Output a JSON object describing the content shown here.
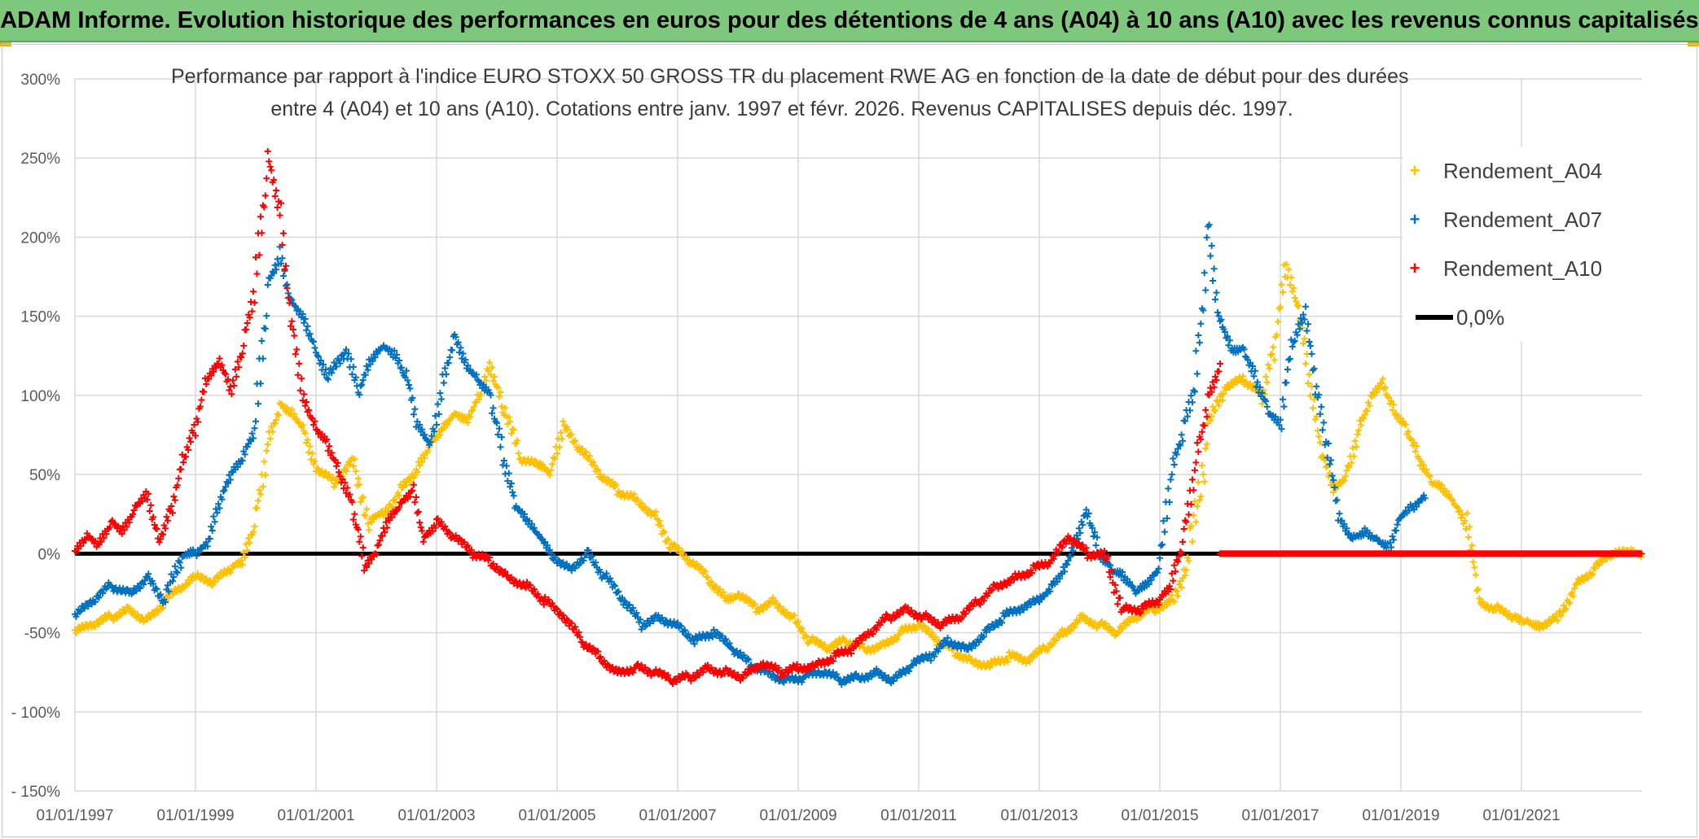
{
  "header": {
    "title": "ADAM Informe. Evolution historique des performances en euros pour des détentions de 4 ans (A04) à 10 ans (A10) avec les revenus connus capitalisés"
  },
  "colors": {
    "banner": "#7dc87d",
    "a04": "#ffc000",
    "a07": "#0070c0",
    "a10": "#ff0000",
    "zero": "#000000",
    "grid": "#d9d9d9"
  },
  "chart_data": {
    "type": "scatter",
    "title_line1": "Performance par rapport à l'indice EURO STOXX 50 GROSS TR  du placement RWE AG en fonction de la date de début pour des durées",
    "title_line2": "entre 4 (A04) et 10 ans (A10). Cotations entre janv. 1997 et févr. 2026. Revenus CAPITALISES depuis déc. 1997.",
    "ylim": [
      -150,
      300
    ],
    "xlim": [
      1997.0,
      2023.0
    ],
    "y_ticks": [
      {
        "value": 300,
        "label": "300%"
      },
      {
        "value": 250,
        "label": "250%"
      },
      {
        "value": 200,
        "label": "200%"
      },
      {
        "value": 150,
        "label": "150%"
      },
      {
        "value": 100,
        "label": "100%"
      },
      {
        "value": 50,
        "label": "50%"
      },
      {
        "value": 0,
        "label": "0%"
      },
      {
        "value": -50,
        "label": "-50%"
      },
      {
        "value": -100,
        "label": "- 100%"
      },
      {
        "value": -150,
        "label": "- 150%"
      }
    ],
    "x_ticks": [
      {
        "value": 1997.0,
        "label": "01/01/1997"
      },
      {
        "value": 1999.0,
        "label": "01/01/1999"
      },
      {
        "value": 2001.0,
        "label": "01/01/2001"
      },
      {
        "value": 2003.0,
        "label": "01/01/2003"
      },
      {
        "value": 2005.0,
        "label": "01/01/2005"
      },
      {
        "value": 2007.0,
        "label": "01/01/2007"
      },
      {
        "value": 2009.0,
        "label": "01/01/2009"
      },
      {
        "value": 2011.0,
        "label": "01/01/2011"
      },
      {
        "value": 2013.0,
        "label": "01/01/2013"
      },
      {
        "value": 2015.0,
        "label": "01/01/2015"
      },
      {
        "value": 2017.0,
        "label": "01/01/2017"
      },
      {
        "value": 2019.0,
        "label": "01/01/2019"
      },
      {
        "value": 2021.0,
        "label": "01/01/2021"
      }
    ],
    "legend": [
      {
        "key": "a04",
        "label": "Rendement_A04",
        "kind": "marker"
      },
      {
        "key": "a07",
        "label": "Rendement_A07",
        "kind": "marker"
      },
      {
        "key": "a10",
        "label": "Rendement_A10",
        "kind": "marker"
      },
      {
        "key": "zero",
        "label": "0,0%",
        "kind": "line"
      }
    ],
    "series": [
      {
        "name": "Rendement_A04",
        "key": "a04",
        "x": [
          1997.0,
          1997.3,
          1997.6,
          1997.9,
          1998.2,
          1998.5,
          1998.8,
          1999.0,
          1999.3,
          1999.6,
          1999.8,
          2000.0,
          2000.2,
          2000.4,
          2000.6,
          2000.8,
          2001.0,
          2001.3,
          2001.6,
          2001.9,
          2002.1,
          2002.4,
          2002.7,
          2002.9,
          2003.1,
          2003.3,
          2003.5,
          2003.7,
          2003.9,
          2004.1,
          2004.4,
          2004.7,
          2004.9,
          2005.1,
          2005.4,
          2005.7,
          2006.0,
          2006.3,
          2006.6,
          2006.9,
          2007.2,
          2007.5,
          2007.8,
          2008.0,
          2008.3,
          2008.6,
          2008.9,
          2009.2,
          2009.5,
          2009.8,
          2010.1,
          2010.4,
          2010.7,
          2011.0,
          2011.3,
          2011.6,
          2011.9,
          2012.2,
          2012.5,
          2012.8,
          2013.1,
          2013.4,
          2013.7,
          2014.0,
          2014.3,
          2014.6,
          2014.9,
          2015.2,
          2015.5,
          2015.8,
          2016.1,
          2016.4,
          2016.7,
          2016.9,
          2017.1,
          2017.3,
          2017.5,
          2017.7,
          2017.9,
          2018.1,
          2018.3,
          2018.5,
          2018.7,
          2018.9,
          2019.1,
          2019.3,
          2019.5,
          2019.7,
          2019.9,
          2020.1,
          2020.3,
          2020.6,
          2020.9,
          2021.1,
          2021.3,
          2021.6,
          2021.9,
          2022.2,
          2022.5,
          2022.8,
          2023.0
        ],
        "values": [
          -50,
          -45,
          -40,
          -35,
          -42,
          -30,
          -20,
          -15,
          -18,
          -10,
          -5,
          20,
          70,
          95,
          90,
          80,
          55,
          45,
          60,
          20,
          25,
          40,
          55,
          70,
          80,
          90,
          85,
          100,
          120,
          90,
          60,
          55,
          50,
          80,
          65,
          50,
          40,
          35,
          25,
          5,
          -5,
          -15,
          -30,
          -25,
          -35,
          -30,
          -40,
          -55,
          -60,
          -55,
          -60,
          -58,
          -50,
          -45,
          -55,
          -62,
          -68,
          -70,
          -65,
          -68,
          -60,
          -50,
          -40,
          -45,
          -50,
          -40,
          -35,
          -30,
          0,
          80,
          105,
          110,
          100,
          130,
          180,
          150,
          100,
          60,
          40,
          50,
          80,
          100,
          110,
          90,
          80,
          60,
          45,
          40,
          30,
          15,
          -30,
          -35,
          -40,
          -42,
          -45,
          -40,
          -20,
          -10,
          0,
          0,
          0
        ]
      },
      {
        "name": "Rendement_A07",
        "key": "a07",
        "x": [
          1997.0,
          1997.3,
          1997.6,
          1997.9,
          1998.2,
          1998.5,
          1998.8,
          1999.0,
          1999.2,
          1999.4,
          1999.6,
          1999.8,
          2000.0,
          2000.2,
          2000.4,
          2000.6,
          2000.8,
          2001.0,
          2001.2,
          2001.5,
          2001.7,
          2001.9,
          2002.1,
          2002.3,
          2002.5,
          2002.7,
          2002.9,
          2003.1,
          2003.3,
          2003.5,
          2003.7,
          2003.9,
          2004.1,
          2004.3,
          2004.5,
          2004.7,
          2004.9,
          2005.2,
          2005.5,
          2005.8,
          2006.1,
          2006.4,
          2006.7,
          2007.0,
          2007.3,
          2007.6,
          2007.9,
          2008.2,
          2008.5,
          2008.8,
          2009.1,
          2009.4,
          2009.7,
          2010.0,
          2010.3,
          2010.6,
          2010.9,
          2011.2,
          2011.5,
          2011.8,
          2012.1,
          2012.4,
          2012.7,
          2013.0,
          2013.2,
          2013.4,
          2013.6,
          2013.8,
          2014.0,
          2014.2,
          2014.4,
          2014.6,
          2014.8,
          2015.0,
          2015.2,
          2015.4,
          2015.6,
          2015.8,
          2016.0,
          2016.2,
          2016.4,
          2016.6,
          2016.8,
          2017.0,
          2017.2,
          2017.4,
          2017.6,
          2017.8,
          2018.0,
          2018.2,
          2018.4,
          2018.6,
          2018.8,
          2019.0,
          2019.2,
          2019.4
        ],
        "values": [
          -40,
          -30,
          -20,
          -25,
          -15,
          -30,
          0,
          0,
          5,
          30,
          50,
          60,
          80,
          170,
          190,
          160,
          150,
          130,
          110,
          130,
          100,
          120,
          130,
          125,
          110,
          80,
          70,
          110,
          140,
          120,
          110,
          100,
          60,
          30,
          20,
          10,
          0,
          -10,
          0,
          -15,
          -30,
          -45,
          -40,
          -45,
          -55,
          -50,
          -60,
          -70,
          -75,
          -80,
          -78,
          -75,
          -80,
          -78,
          -75,
          -80,
          -70,
          -65,
          -55,
          -60,
          -50,
          -40,
          -35,
          -30,
          -20,
          -10,
          10,
          30,
          0,
          -10,
          -15,
          -25,
          -20,
          -10,
          50,
          80,
          110,
          210,
          150,
          130,
          130,
          110,
          90,
          80,
          130,
          150,
          100,
          60,
          20,
          10,
          15,
          10,
          5,
          25,
          30,
          35
        ]
      },
      {
        "name": "Rendement_A10",
        "key": "a10",
        "x": [
          1997.0,
          1997.2,
          1997.4,
          1997.6,
          1997.8,
          1998.0,
          1998.2,
          1998.4,
          1998.6,
          1998.8,
          1999.0,
          1999.2,
          1999.4,
          1999.6,
          1999.8,
          2000.0,
          2000.2,
          2000.4,
          2000.6,
          2000.8,
          2001.0,
          2001.2,
          2001.4,
          2001.6,
          2001.8,
          2002.0,
          2002.2,
          2002.4,
          2002.6,
          2002.8,
          2003.0,
          2003.3,
          2003.6,
          2003.9,
          2004.2,
          2004.5,
          2004.8,
          2005.1,
          2005.4,
          2005.7,
          2006.0,
          2006.3,
          2006.6,
          2006.9,
          2007.2,
          2007.5,
          2007.8,
          2008.1,
          2008.4,
          2008.7,
          2009.0,
          2009.3,
          2009.6,
          2009.9,
          2010.2,
          2010.5,
          2010.8,
          2011.1,
          2011.4,
          2011.7,
          2012.0,
          2012.3,
          2012.6,
          2012.9,
          2013.2,
          2013.5,
          2013.8,
          2014.1,
          2014.4,
          2014.7,
          2015.0,
          2015.2,
          2015.4,
          2015.6,
          2015.8,
          2016.0
        ],
        "values": [
          0,
          10,
          5,
          20,
          15,
          30,
          40,
          10,
          30,
          60,
          80,
          110,
          120,
          100,
          130,
          170,
          250,
          220,
          150,
          100,
          80,
          70,
          50,
          30,
          -10,
          0,
          20,
          30,
          40,
          10,
          20,
          10,
          0,
          -5,
          -15,
          -20,
          -30,
          -40,
          -55,
          -65,
          -75,
          -72,
          -75,
          -80,
          -78,
          -72,
          -75,
          -78,
          -70,
          -75,
          -72,
          -70,
          -65,
          -60,
          -50,
          -40,
          -35,
          -40,
          -45,
          -40,
          -30,
          -20,
          -15,
          -10,
          -5,
          10,
          0,
          0,
          -35,
          -35,
          -30,
          -20,
          10,
          60,
          100,
          120
        ]
      },
      {
        "name": "Rendement_A10 (0%)",
        "key": "a10",
        "x_range": [
          2016.0,
          2023.0
        ],
        "value": 0
      }
    ]
  }
}
